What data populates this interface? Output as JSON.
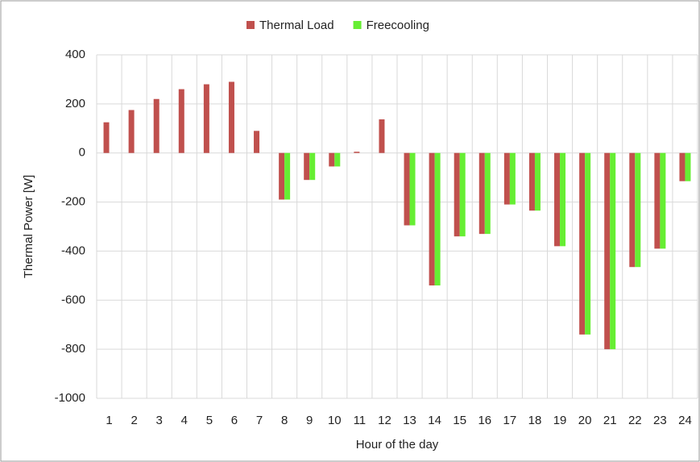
{
  "chart_data": {
    "type": "bar",
    "x_label": "Hour of the day",
    "y_label": "Thermal Power [W]",
    "categories": [
      "1",
      "2",
      "3",
      "4",
      "5",
      "6",
      "7",
      "8",
      "9",
      "10",
      "11",
      "12",
      "13",
      "14",
      "15",
      "16",
      "17",
      "18",
      "19",
      "20",
      "21",
      "22",
      "23",
      "24"
    ],
    "series": [
      {
        "name": "Thermal Load",
        "color": "#c0504d",
        "values": [
          125,
          175,
          220,
          260,
          280,
          290,
          90,
          -190,
          -110,
          -55,
          5,
          137,
          -295,
          -540,
          -340,
          -330,
          -210,
          -235,
          -380,
          -740,
          -800,
          -465,
          -390,
          -115
        ]
      },
      {
        "name": "Freecooling",
        "color": "#66ee33",
        "values": [
          0,
          0,
          0,
          0,
          0,
          0,
          0,
          -190,
          -110,
          -55,
          0,
          0,
          -295,
          -540,
          -340,
          -330,
          -210,
          -235,
          -380,
          -740,
          -800,
          -465,
          -390,
          -115
        ]
      }
    ],
    "ylim": [
      -1000,
      400
    ],
    "yticks": [
      -1000,
      -800,
      -600,
      -400,
      -200,
      0,
      200,
      400
    ],
    "grid": true,
    "legend": "top"
  }
}
